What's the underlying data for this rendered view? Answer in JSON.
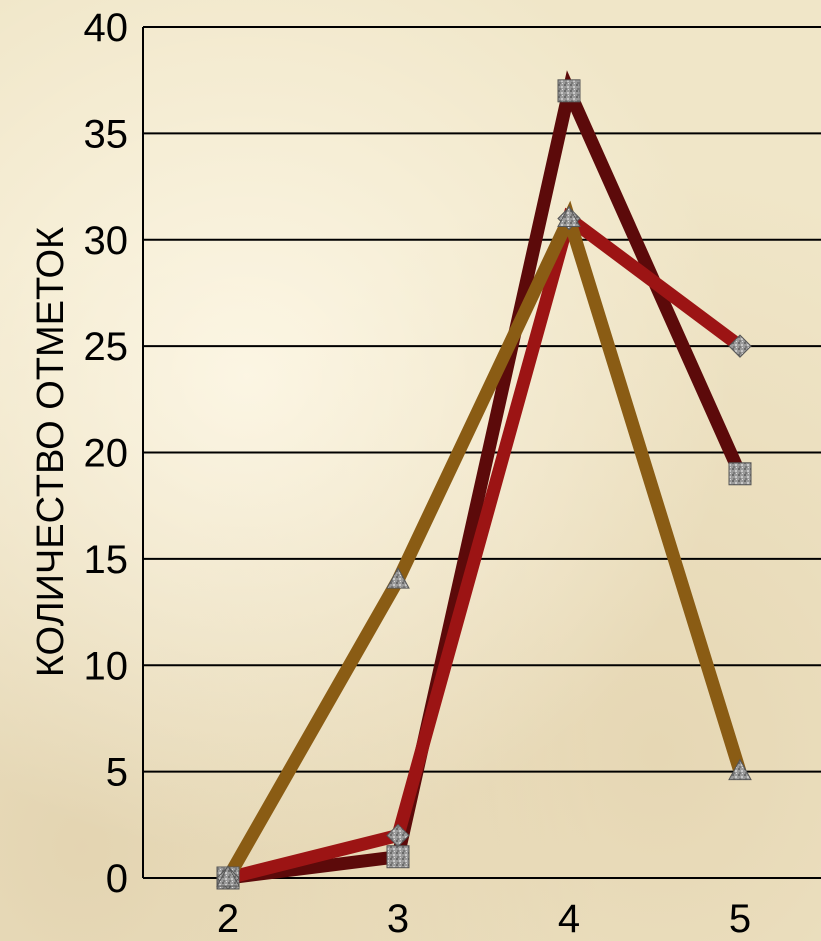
{
  "chart_data": {
    "type": "line",
    "title": "",
    "xlabel": "",
    "ylabel": "КОЛИЧЕСТВО ОТМЕТОК",
    "x": [
      "2",
      "3",
      "4",
      "5"
    ],
    "ylim": [
      0,
      40
    ],
    "yticks": [
      0,
      5,
      10,
      15,
      20,
      25,
      30,
      35,
      40
    ],
    "grid": true,
    "legend": "none",
    "series": [
      {
        "color": "#5c0a0a",
        "marker": "square",
        "values": [
          0,
          1,
          37,
          19
        ]
      },
      {
        "color": "#9c1414",
        "marker": "diamond",
        "values": [
          0,
          2,
          31,
          25
        ]
      },
      {
        "color": "#8a5c14",
        "marker": "triangle",
        "values": [
          0,
          14,
          31,
          5
        ]
      }
    ]
  }
}
